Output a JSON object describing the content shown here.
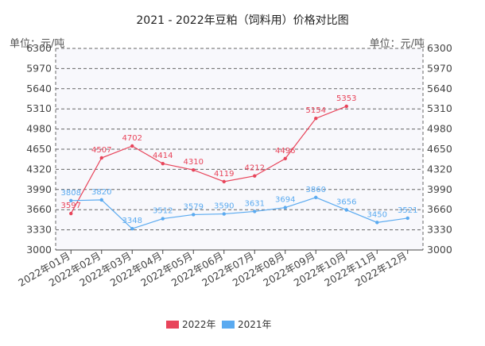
{
  "chart_data": {
    "type": "line",
    "title": "2021 - 2022年豆粕（饲料用）价格对比图",
    "unit_label": "单位：元/吨",
    "ylim": [
      3000,
      6300
    ],
    "yticks": [
      3000,
      3330,
      3660,
      3990,
      4320,
      4650,
      4980,
      5310,
      5640,
      5970,
      6300
    ],
    "categories": [
      "2022年01月",
      "2022年02月",
      "2022年03月",
      "2022年04月",
      "2022年05月",
      "2022年06月",
      "2022年07月",
      "2022年08月",
      "2022年09月",
      "2022年10月",
      "2022年11月",
      "2022年12月"
    ],
    "series": [
      {
        "name": "2022年",
        "color": "#e8445a",
        "values": [
          3597,
          4507,
          4702,
          4414,
          4310,
          4119,
          4212,
          4496,
          5154,
          5353,
          null,
          null
        ]
      },
      {
        "name": "2021年",
        "color": "#5aaaf0",
        "values": [
          3808,
          3820,
          3348,
          3512,
          3579,
          3590,
          3631,
          3694,
          3860,
          3656,
          3450,
          3521
        ]
      }
    ],
    "grid": true,
    "legend_position": "bottom-center"
  }
}
